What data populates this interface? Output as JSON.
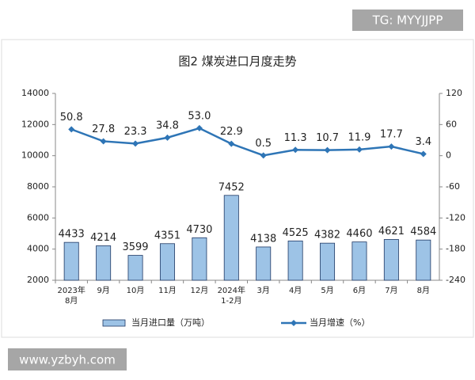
{
  "watermark_top": "TG: MYYJJPP",
  "watermark_bottom": "www.yzbyh.com",
  "chart_data": {
    "type": "bar-line",
    "title": "图2  煤炭进口月度走势",
    "categories": [
      "2023年\n8月",
      "9月",
      "10月",
      "11月",
      "12月",
      "2024年\n1-2月",
      "3月",
      "4月",
      "5月",
      "6月",
      "7月",
      "8月"
    ],
    "series": [
      {
        "name": "当月进口量（万吨）",
        "type": "bar",
        "color": "#9dc3e6",
        "values": [
          4433,
          4214,
          3599,
          4351,
          4730,
          7452,
          4138,
          4525,
          4382,
          4460,
          4621,
          4584
        ]
      },
      {
        "name": "当月增速（%）",
        "type": "line",
        "axis": "y2",
        "color": "#2e75b6",
        "values": [
          50.8,
          27.8,
          23.3,
          34.8,
          53.0,
          22.9,
          0.5,
          11.3,
          10.7,
          11.9,
          17.7,
          3.4
        ],
        "value_labels": [
          "50.8",
          "27.8",
          "23.3",
          "34.8",
          "53.0",
          "22.9",
          "0.5",
          "11.3",
          "10.7",
          "11.9",
          "17.7",
          "3.4"
        ]
      }
    ],
    "ylim": [
      2000,
      14000
    ],
    "yticks": [
      2000,
      4000,
      6000,
      8000,
      10000,
      12000,
      14000
    ],
    "y2lim": [
      -240,
      120
    ],
    "y2ticks": [
      -240,
      -180,
      -120,
      -60,
      0,
      60,
      120
    ],
    "legend": "bottom"
  }
}
